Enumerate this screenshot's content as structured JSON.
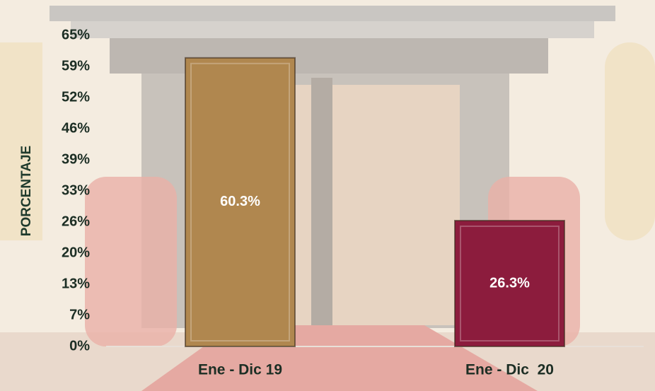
{
  "chart_data": {
    "type": "bar",
    "y_label": "PORCENTAJE",
    "categories": [
      "Ene - Dic 19",
      "Ene - Dic  20"
    ],
    "values": [
      60.3,
      26.3
    ],
    "value_labels": [
      "60.3%",
      "26.3%"
    ],
    "colors": [
      "#b0874f",
      "#8c1c3d"
    ],
    "ylim": [
      0,
      65
    ],
    "yticks": [
      {
        "value": 0,
        "label": "0%"
      },
      {
        "value": 6.5,
        "label": "7%"
      },
      {
        "value": 13,
        "label": "13%"
      },
      {
        "value": 19.5,
        "label": "20%"
      },
      {
        "value": 26,
        "label": "26%"
      },
      {
        "value": 32.5,
        "label": "33%"
      },
      {
        "value": 39,
        "label": "39%"
      },
      {
        "value": 45.5,
        "label": "46%"
      },
      {
        "value": 52,
        "label": "52%"
      },
      {
        "value": 58.5,
        "label": "59%"
      },
      {
        "value": 65,
        "label": "65%"
      }
    ],
    "grid": false
  }
}
